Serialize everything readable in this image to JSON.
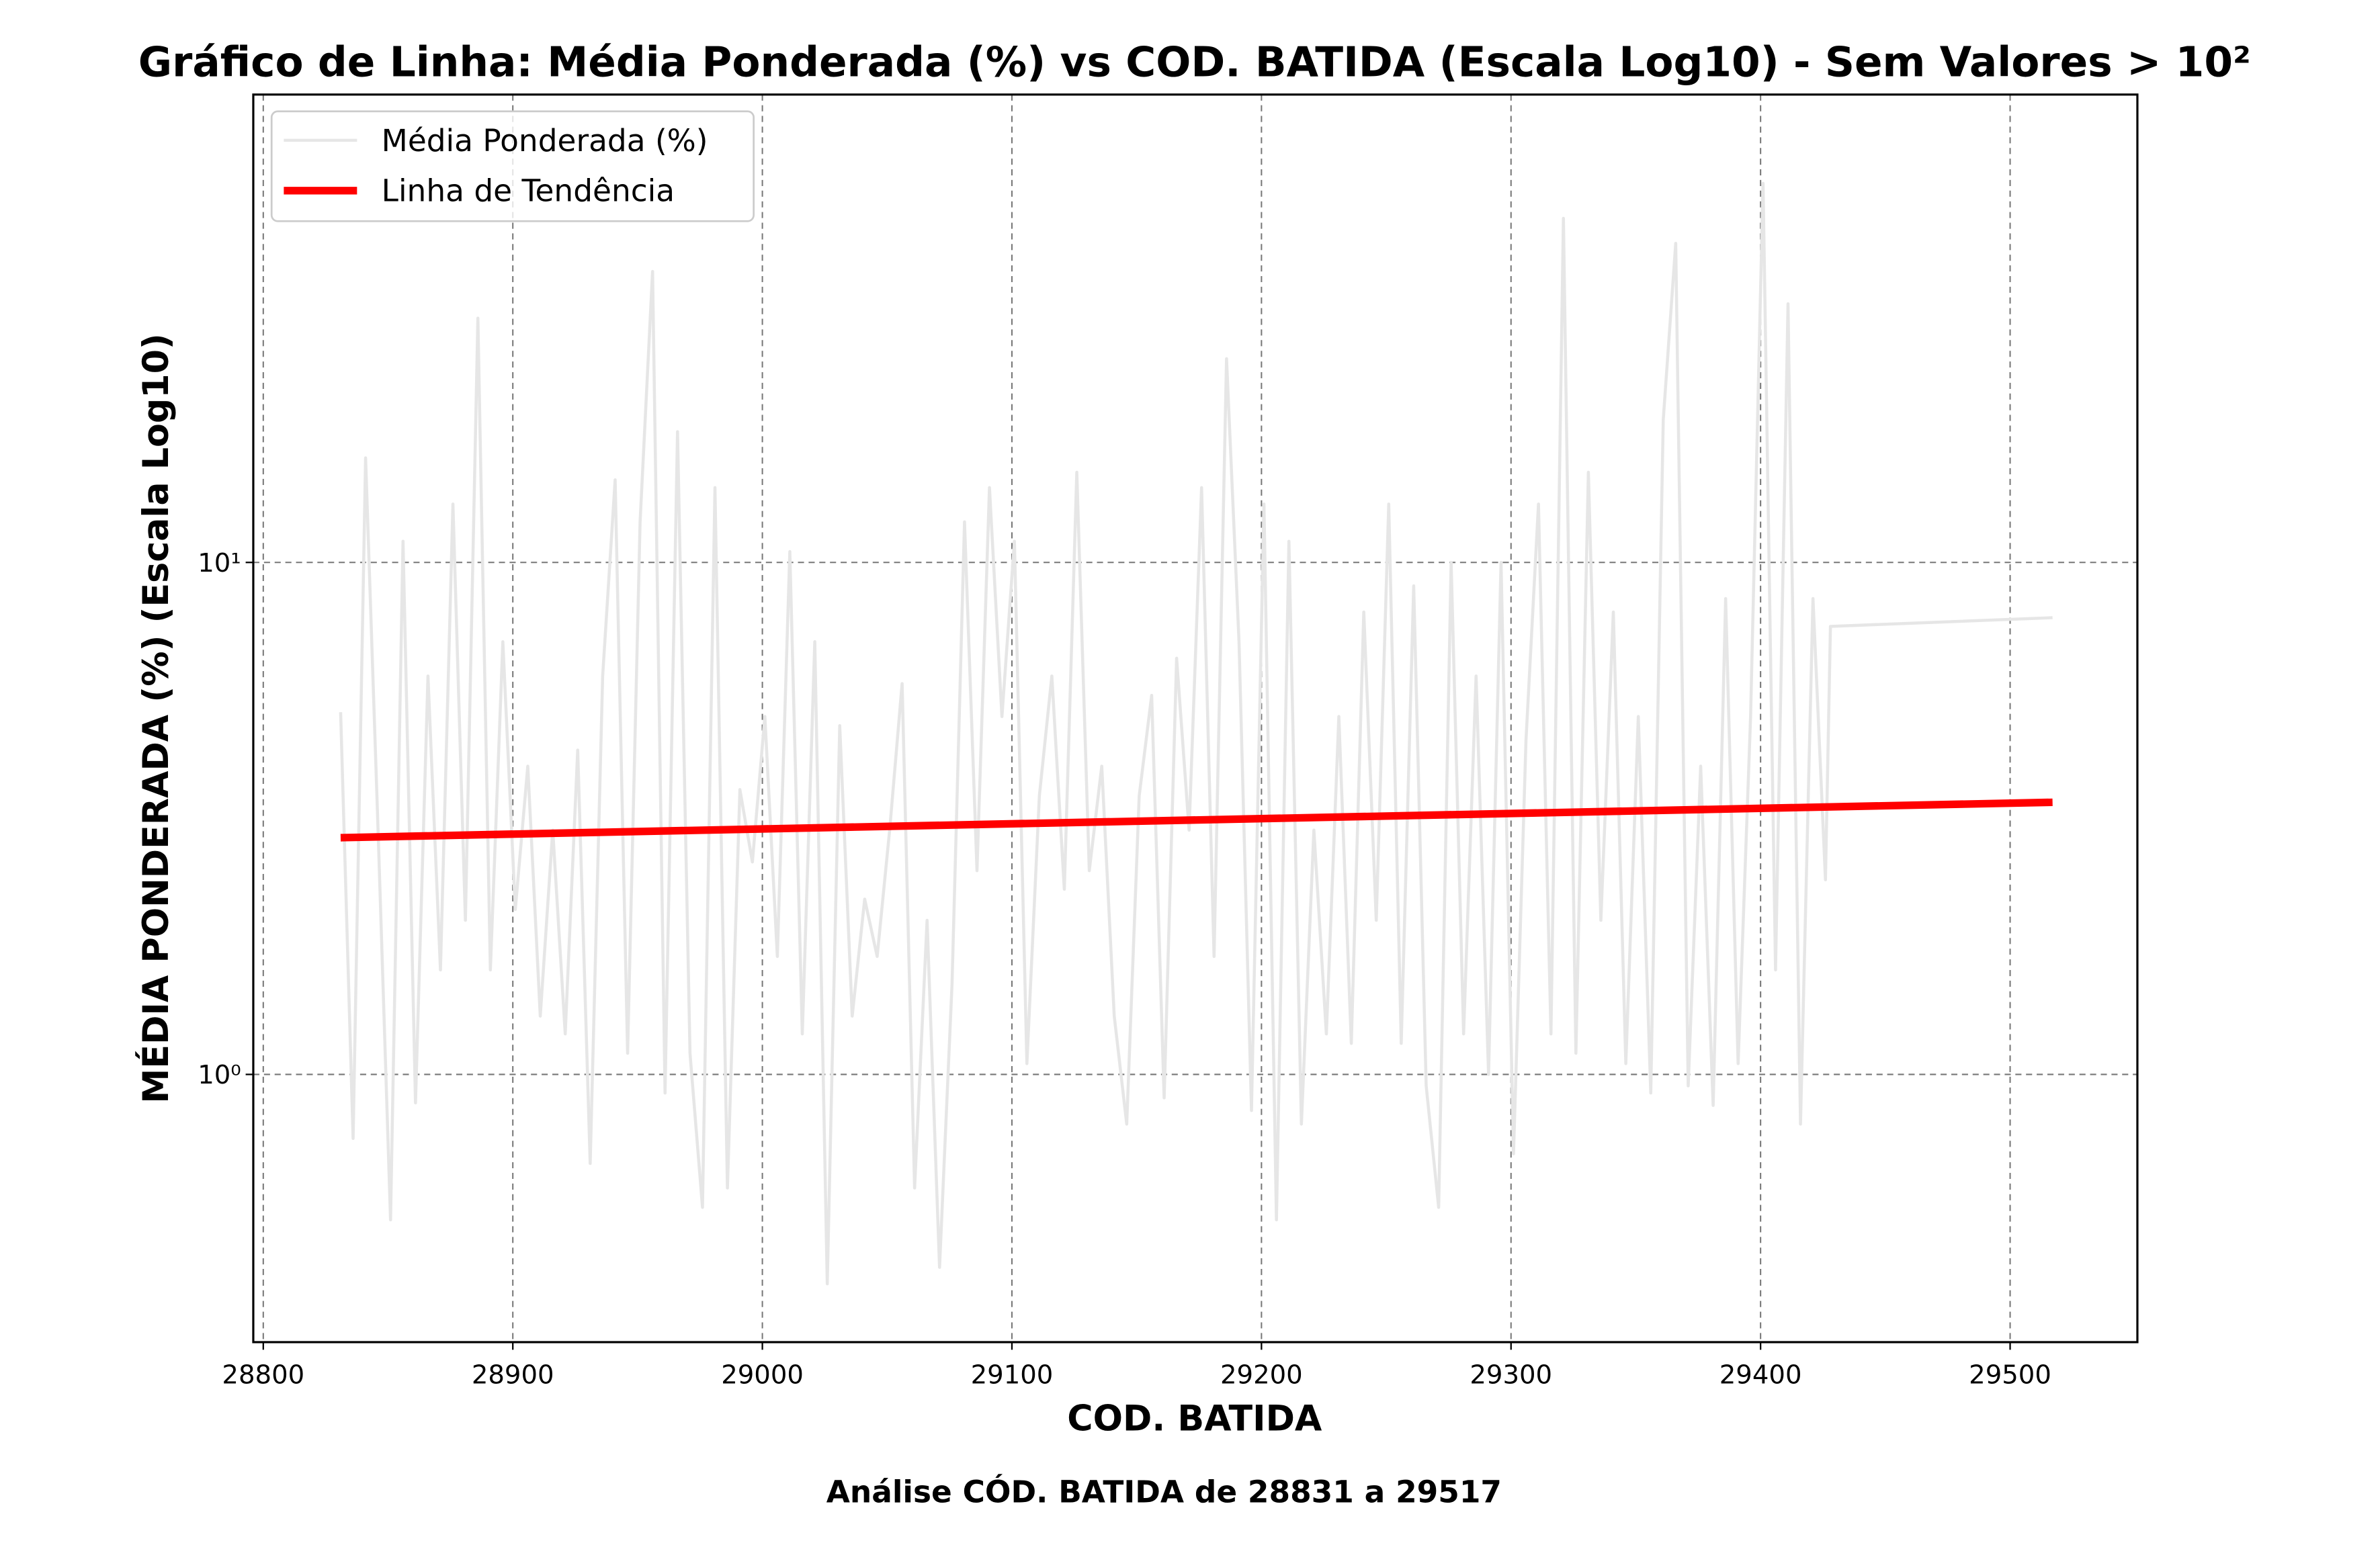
{
  "chart_data": {
    "type": "line",
    "title": "Gráfico de Linha: Média Ponderada (%) vs COD. BATIDA (Escala Log10) - Sem Valores > 10²",
    "xlabel": "COD. BATIDA",
    "ylabel": "MÉDIA PONDERADA (%) (Escala Log10)",
    "annotation": "Análise CÓD. BATIDA de 28831 a 29517",
    "xlim": [
      28796,
      29551
    ],
    "xticks": [
      28800,
      28900,
      29000,
      29100,
      29200,
      29300,
      29400,
      29500
    ],
    "ylim": [
      0.3,
      82
    ],
    "yticks": [
      {
        "value": 1,
        "label": "10⁰"
      },
      {
        "value": 10,
        "label": "10¹"
      }
    ],
    "yscale": "log",
    "grid": true,
    "legend": "upper left",
    "series": [
      {
        "name": "Média Ponderada (%)",
        "color": "#e6e6e6",
        "x": [
          28831,
          28836,
          28841,
          28846,
          28851,
          28856,
          28861,
          28866,
          28871,
          28876,
          28881,
          28886,
          28891,
          28896,
          28901,
          28906,
          28911,
          28916,
          28921,
          28926,
          28931,
          28936,
          28941,
          28946,
          28951,
          28956,
          28961,
          28966,
          28971,
          28976,
          28981,
          28986,
          28991,
          28996,
          29001,
          29006,
          29011,
          29016,
          29021,
          29026,
          29031,
          29036,
          29041,
          29046,
          29051,
          29056,
          29061,
          29066,
          29071,
          29076,
          29081,
          29086,
          29091,
          29096,
          29101,
          29106,
          29111,
          29116,
          29121,
          29126,
          29131,
          29136,
          29141,
          29146,
          29151,
          29156,
          29161,
          29166,
          29171,
          29176,
          29181,
          29186,
          29191,
          29196,
          29201,
          29206,
          29211,
          29216,
          29221,
          29226,
          29231,
          29236,
          29241,
          29246,
          29251,
          29256,
          29261,
          29266,
          29271,
          29276,
          29281,
          29286,
          29291,
          29296,
          29301,
          29306,
          29311,
          29316,
          29321,
          29326,
          29331,
          29336,
          29341,
          29346,
          29351,
          29356,
          29361,
          29366,
          29371,
          29376,
          29381,
          29386,
          29391,
          29396,
          29401,
          29406,
          29411,
          29416,
          29421,
          29426,
          29428,
          29517
        ],
        "values": [
          5.1,
          0.75,
          16,
          3.0,
          0.52,
          11,
          0.88,
          6,
          1.6,
          13,
          2.0,
          30,
          1.6,
          7,
          2.1,
          4,
          1.3,
          3,
          1.2,
          4.3,
          0.67,
          6,
          14.5,
          1.1,
          12,
          37,
          0.92,
          18,
          1.1,
          0.55,
          14,
          0.6,
          3.6,
          2.6,
          5,
          1.7,
          10.5,
          1.2,
          7,
          0.39,
          4.8,
          1.3,
          2.2,
          1.7,
          3,
          5.8,
          0.6,
          2,
          0.42,
          1.5,
          12,
          2.5,
          14,
          5,
          11,
          1.05,
          3.5,
          6,
          2.3,
          15,
          2.5,
          4,
          1.3,
          0.8,
          3.5,
          5.5,
          0.9,
          6.5,
          3,
          14,
          1.7,
          25,
          7,
          0.85,
          13,
          0.52,
          11,
          0.8,
          3,
          1.2,
          5,
          1.15,
          8,
          2,
          13,
          1.15,
          9,
          0.95,
          0.55,
          10,
          1.2,
          6,
          1,
          10,
          0.7,
          4.5,
          13,
          1.2,
          47,
          1.1,
          15,
          2,
          8,
          1.05,
          5,
          0.92,
          19,
          42,
          0.95,
          4,
          0.87,
          8.5,
          1.05,
          5,
          55,
          1.6,
          32,
          0.8,
          8.5,
          2.4,
          7.5,
          7.8
        ]
      },
      {
        "name": "Linha de Tendência",
        "color": "#ff0000",
        "x": [
          28831,
          29517
        ],
        "values": [
          2.9,
          3.4
        ]
      }
    ]
  }
}
